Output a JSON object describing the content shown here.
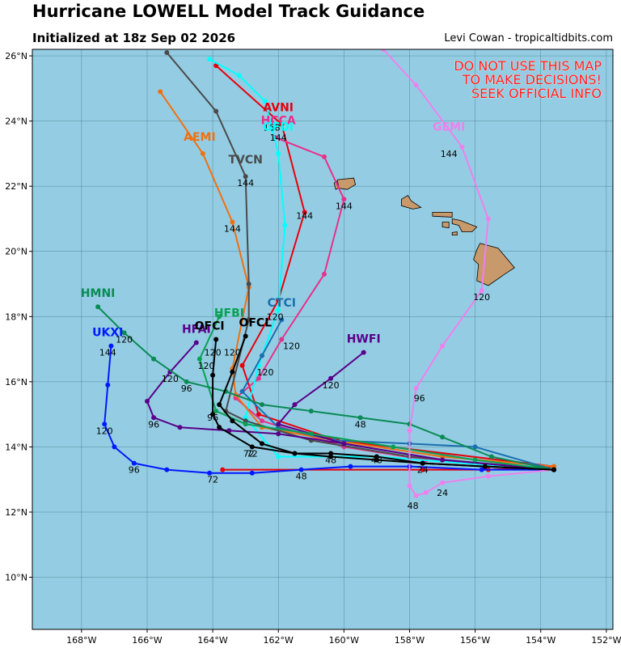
{
  "title": "Hurricane LOWELL Model Track Guidance",
  "subtitle": "Initialized at 18z Sep 02 2026",
  "credit": "Levi Cowan - tropicaltidbits.com",
  "warning_lines": [
    "DO NOT USE THIS MAP",
    "TO MAKE DECISIONS!",
    "SEEK OFFICIAL INFO"
  ],
  "colors": {
    "ocean": "#94cde3",
    "land": "#c8996a",
    "grid": "#2a5a6a",
    "warning": "#ff1a1a"
  },
  "map_bounds": {
    "lon_min": -169.5,
    "lon_max": -151.8,
    "lat_min": 8.4,
    "lat_max": 26.2
  },
  "lon_ticks": [
    {
      "lon": -168,
      "label": "168°W"
    },
    {
      "lon": -166,
      "label": "166°W"
    },
    {
      "lon": -164,
      "label": "164°W"
    },
    {
      "lon": -162,
      "label": "162°W"
    },
    {
      "lon": -160,
      "label": "160°W"
    },
    {
      "lon": -158,
      "label": "158°W"
    },
    {
      "lon": -156,
      "label": "156°W"
    },
    {
      "lon": -154,
      "label": "154°W"
    },
    {
      "lon": -152,
      "label": "152°W"
    }
  ],
  "lat_ticks": [
    {
      "lat": 10,
      "label": "10°N"
    },
    {
      "lat": 12,
      "label": "12°N"
    },
    {
      "lat": 14,
      "label": "14°N"
    },
    {
      "lat": 16,
      "label": "16°N"
    },
    {
      "lat": 18,
      "label": "18°N"
    },
    {
      "lat": 20,
      "label": "20°N"
    },
    {
      "lat": 22,
      "label": "22°N"
    },
    {
      "lat": 24,
      "label": "24°N"
    },
    {
      "lat": 26,
      "label": "26°N"
    }
  ],
  "islands": [
    {
      "name": "Kauai",
      "points": [
        [
          -160.2,
          22.2
        ],
        [
          -159.7,
          22.25
        ],
        [
          -159.65,
          22.05
        ],
        [
          -159.9,
          21.9
        ],
        [
          -160.25,
          21.95
        ]
      ]
    },
    {
      "name": "Niihau",
      "points": [
        [
          -160.3,
          22.1
        ],
        [
          -160.2,
          22.15
        ],
        [
          -160.15,
          21.95
        ],
        [
          -160.25,
          21.9
        ]
      ]
    },
    {
      "name": "Oahu",
      "points": [
        [
          -158.25,
          21.6
        ],
        [
          -158.05,
          21.72
        ],
        [
          -157.95,
          21.55
        ],
        [
          -157.65,
          21.35
        ],
        [
          -157.9,
          21.3
        ],
        [
          -158.25,
          21.4
        ]
      ]
    },
    {
      "name": "Molokai",
      "points": [
        [
          -157.3,
          21.2
        ],
        [
          -156.7,
          21.2
        ],
        [
          -156.7,
          21.05
        ],
        [
          -157.3,
          21.08
        ]
      ]
    },
    {
      "name": "Lanai",
      "points": [
        [
          -157.0,
          20.9
        ],
        [
          -156.8,
          20.9
        ],
        [
          -156.8,
          20.72
        ],
        [
          -157.0,
          20.75
        ]
      ]
    },
    {
      "name": "Maui",
      "points": [
        [
          -156.7,
          21.0
        ],
        [
          -156.45,
          20.95
        ],
        [
          -156.2,
          20.85
        ],
        [
          -155.95,
          20.75
        ],
        [
          -156.1,
          20.6
        ],
        [
          -156.4,
          20.6
        ],
        [
          -156.5,
          20.8
        ],
        [
          -156.7,
          20.85
        ]
      ]
    },
    {
      "name": "Kahoolawe",
      "points": [
        [
          -156.7,
          20.58
        ],
        [
          -156.55,
          20.6
        ],
        [
          -156.55,
          20.5
        ],
        [
          -156.7,
          20.5
        ]
      ]
    },
    {
      "name": "Hawaii",
      "points": [
        [
          -155.85,
          20.25
        ],
        [
          -155.3,
          20.1
        ],
        [
          -154.8,
          19.5
        ],
        [
          -155.1,
          19.3
        ],
        [
          -155.6,
          18.95
        ],
        [
          -155.95,
          19.1
        ],
        [
          -155.9,
          19.6
        ],
        [
          -156.05,
          19.75
        ],
        [
          -155.95,
          20.05
        ]
      ]
    }
  ],
  "tracks": [
    {
      "model": "AVNI",
      "color": "#e8000b",
      "points": [
        [
          -163.7,
          13.3
        ],
        [
          -157.6,
          13.3
        ],
        [
          -155.6,
          13.3
        ],
        [
          -153.6,
          13.4
        ],
        [
          -160.2,
          14.2
        ],
        [
          -162.6,
          15.0
        ],
        [
          -163.1,
          16.5
        ],
        [
          -162.0,
          18.5
        ],
        [
          -161.2,
          21.2
        ],
        [
          -161.9,
          23.9
        ],
        [
          -163.9,
          25.7
        ]
      ],
      "label": {
        "lon": -162.0,
        "lat": 24.3
      },
      "hours": [
        {
          "lon": -162.2,
          "lat": 23.7,
          "t": "168"
        },
        {
          "lon": -161.2,
          "lat": 21.0,
          "t": "144"
        },
        {
          "lon": -162.4,
          "lat": 16.2,
          "t": "120"
        }
      ]
    },
    {
      "model": "HCCA",
      "color": "#e8308a",
      "points": [
        [
          -153.6,
          13.3
        ],
        [
          -157.5,
          13.6
        ],
        [
          -160.0,
          14.0
        ],
        [
          -162.5,
          14.8
        ],
        [
          -163.3,
          15.5
        ],
        [
          -162.6,
          16.1
        ],
        [
          -161.9,
          17.3
        ],
        [
          -160.6,
          19.3
        ],
        [
          -160.0,
          21.6
        ],
        [
          -160.6,
          22.9
        ],
        [
          -162.1,
          23.5
        ]
      ],
      "label": {
        "lon": -162.0,
        "lat": 23.9
      },
      "hours": [
        {
          "lon": -160.0,
          "lat": 21.3,
          "t": "144"
        },
        {
          "lon": -161.6,
          "lat": 17.0,
          "t": "120"
        }
      ]
    },
    {
      "model": "GFDI",
      "color": "#00ffff",
      "points": [
        [
          -153.6,
          13.3
        ],
        [
          -159.0,
          13.7
        ],
        [
          -162.0,
          13.7
        ],
        [
          -163.0,
          14.9
        ],
        [
          -162.6,
          16.5
        ],
        [
          -162.0,
          18.2
        ],
        [
          -161.8,
          20.8
        ],
        [
          -162.0,
          23.0
        ],
        [
          -162.4,
          24.6
        ],
        [
          -163.2,
          25.4
        ],
        [
          -164.1,
          25.9
        ]
      ],
      "label": {
        "lon": -162.0,
        "lat": 23.7
      },
      "hours": [
        {
          "lon": -162.0,
          "lat": 23.4,
          "t": "144"
        }
      ]
    },
    {
      "model": "AEMI",
      "color": "#f07010",
      "points": [
        [
          -153.6,
          13.4
        ],
        [
          -157.0,
          13.7
        ],
        [
          -160.3,
          14.2
        ],
        [
          -162.5,
          14.6
        ],
        [
          -163.3,
          15.6
        ],
        [
          -163.4,
          16.4
        ],
        [
          -162.9,
          18.9
        ],
        [
          -163.4,
          20.9
        ],
        [
          -164.3,
          23.0
        ],
        [
          -165.6,
          24.9
        ]
      ],
      "label": {
        "lon": -164.4,
        "lat": 23.4
      },
      "hours": [
        {
          "lon": -163.4,
          "lat": 20.6,
          "t": "144"
        }
      ]
    },
    {
      "model": "TVCN",
      "color": "#4a4a4a",
      "points": [
        [
          -153.6,
          13.3
        ],
        [
          -158.0,
          13.7
        ],
        [
          -161.0,
          14.2
        ],
        [
          -163.0,
          14.8
        ],
        [
          -163.6,
          15.1
        ],
        [
          -162.9,
          17.9
        ],
        [
          -162.9,
          19.0
        ],
        [
          -163.0,
          22.3
        ],
        [
          -163.9,
          24.3
        ],
        [
          -165.4,
          26.1
        ]
      ],
      "label": {
        "lon": -163.0,
        "lat": 22.7
      },
      "hours": [
        {
          "lon": -163.0,
          "lat": 22.0,
          "t": "144"
        }
      ]
    },
    {
      "model": "CTCI",
      "color": "#1a6fb0",
      "points": [
        [
          -153.6,
          13.3
        ],
        [
          -156.0,
          14.0
        ],
        [
          -158.0,
          14.1
        ],
        [
          -160.3,
          14.2
        ],
        [
          -162.0,
          14.6
        ],
        [
          -163.1,
          15.7
        ],
        [
          -162.5,
          16.8
        ],
        [
          -161.9,
          17.9
        ]
      ],
      "label": {
        "lon": -161.9,
        "lat": 18.3
      },
      "hours": [
        {
          "lon": -162.1,
          "lat": 17.9,
          "t": "120"
        }
      ]
    },
    {
      "model": "HWFI",
      "color": "#5a008a",
      "points": [
        [
          -153.6,
          13.3
        ],
        [
          -157.0,
          13.6
        ],
        [
          -160.0,
          14.1
        ],
        [
          -162.0,
          14.7
        ],
        [
          -161.5,
          15.3
        ],
        [
          -160.4,
          16.1
        ],
        [
          -159.4,
          16.9
        ]
      ],
      "label": {
        "lon": -159.4,
        "lat": 17.2
      },
      "hours": [
        {
          "lon": -160.4,
          "lat": 15.8,
          "t": "120"
        }
      ]
    },
    {
      "model": "HFAI",
      "color": "#5a008a",
      "points": [
        [
          -153.6,
          13.3
        ],
        [
          -157.0,
          13.6
        ],
        [
          -160.0,
          14.1
        ],
        [
          -162.0,
          14.4
        ],
        [
          -163.5,
          14.5
        ],
        [
          -165.0,
          14.6
        ],
        [
          -165.8,
          14.9
        ],
        [
          -166.0,
          15.4
        ],
        [
          -165.3,
          16.3
        ],
        [
          -164.5,
          17.2
        ]
      ],
      "label": {
        "lon": -164.5,
        "lat": 17.5
      },
      "hours": [
        {
          "lon": -165.3,
          "lat": 16.0,
          "t": "120"
        },
        {
          "lon": -165.8,
          "lat": 14.6,
          "t": "96"
        }
      ]
    },
    {
      "model": "HFBI",
      "color": "#0aa055",
      "points": [
        [
          -153.6,
          13.3
        ],
        [
          -156.0,
          13.6
        ],
        [
          -158.5,
          14.0
        ],
        [
          -161.0,
          14.4
        ],
        [
          -163.0,
          14.7
        ],
        [
          -163.9,
          15.1
        ],
        [
          -164.4,
          16.7
        ],
        [
          -163.8,
          18.0
        ]
      ],
      "label": {
        "lon": -163.5,
        "lat": 18.0
      },
      "hours": [
        {
          "lon": -164.2,
          "lat": 16.4,
          "t": "120"
        }
      ]
    },
    {
      "model": "HMNI",
      "color": "#0a8a55",
      "points": [
        [
          -153.6,
          13.3
        ],
        [
          -155.5,
          13.7
        ],
        [
          -157.0,
          14.3
        ],
        [
          -158.0,
          14.7
        ],
        [
          -159.5,
          14.9
        ],
        [
          -161.0,
          15.1
        ],
        [
          -162.5,
          15.3
        ],
        [
          -163.6,
          15.7
        ],
        [
          -164.8,
          16.0
        ],
        [
          -165.8,
          16.7
        ],
        [
          -166.7,
          17.5
        ],
        [
          -167.5,
          18.3
        ]
      ],
      "label": {
        "lon": -167.5,
        "lat": 18.6
      },
      "hours": [
        {
          "lon": -166.7,
          "lat": 17.2,
          "t": "120"
        },
        {
          "lon": -164.8,
          "lat": 15.7,
          "t": "96"
        },
        {
          "lon": -159.5,
          "lat": 14.6,
          "t": "48"
        }
      ]
    },
    {
      "model": "UKXI",
      "color": "#0018ff",
      "points": [
        [
          -153.6,
          13.3
        ],
        [
          -155.8,
          13.3
        ],
        [
          -158.0,
          13.4
        ],
        [
          -159.8,
          13.4
        ],
        [
          -161.3,
          13.3
        ],
        [
          -162.8,
          13.2
        ],
        [
          -164.1,
          13.2
        ],
        [
          -165.4,
          13.3
        ],
        [
          -166.4,
          13.5
        ],
        [
          -167.0,
          14.0
        ],
        [
          -167.3,
          14.7
        ],
        [
          -167.2,
          15.9
        ],
        [
          -167.1,
          17.1
        ]
      ],
      "label": {
        "lon": -167.2,
        "lat": 17.4
      },
      "hours": [
        {
          "lon": -167.2,
          "lat": 16.8,
          "t": "144"
        },
        {
          "lon": -167.3,
          "lat": 14.4,
          "t": "120"
        },
        {
          "lon": -166.4,
          "lat": 13.2,
          "t": "96"
        },
        {
          "lon": -164.0,
          "lat": 12.9,
          "t": "72"
        },
        {
          "lon": -161.3,
          "lat": 13.0,
          "t": "48"
        }
      ]
    },
    {
      "model": "GEMI",
      "color": "#ee80ee",
      "points": [
        [
          -153.6,
          13.3
        ],
        [
          -155.6,
          13.1
        ],
        [
          -157.0,
          12.9
        ],
        [
          -157.5,
          12.6
        ],
        [
          -157.8,
          12.5
        ],
        [
          -158.0,
          12.8
        ],
        [
          -158.0,
          14.5
        ],
        [
          -157.8,
          15.8
        ],
        [
          -157.0,
          17.1
        ],
        [
          -155.8,
          18.8
        ],
        [
          -155.6,
          21.0
        ],
        [
          -156.4,
          23.2
        ],
        [
          -157.8,
          25.1
        ],
        [
          -158.8,
          26.2
        ]
      ],
      "label": {
        "lon": -156.8,
        "lat": 23.7
      },
      "hours": [
        {
          "lon": -156.8,
          "lat": 22.9,
          "t": "144"
        },
        {
          "lon": -155.8,
          "lat": 18.5,
          "t": "120"
        },
        {
          "lon": -157.7,
          "lat": 15.4,
          "t": "96"
        },
        {
          "lon": -157.9,
          "lat": 12.1,
          "t": "48"
        },
        {
          "lon": -157.0,
          "lat": 12.5,
          "t": "24"
        }
      ]
    },
    {
      "model": "OFCI",
      "color": "#000000",
      "points": [
        [
          -153.6,
          13.3
        ],
        [
          -155.7,
          13.4
        ],
        [
          -157.6,
          13.5
        ],
        [
          -159.0,
          13.7
        ],
        [
          -160.4,
          13.8
        ],
        [
          -161.5,
          13.8
        ],
        [
          -162.8,
          14.0
        ],
        [
          -163.8,
          14.6
        ],
        [
          -164.0,
          15.0
        ],
        [
          -164.0,
          16.2
        ],
        [
          -163.9,
          17.3
        ]
      ],
      "label": {
        "lon": -164.1,
        "lat": 17.6
      },
      "hours": [
        {
          "lon": -164.0,
          "lat": 16.8,
          "t": "120"
        },
        {
          "lon": -164.0,
          "lat": 14.8,
          "t": "96"
        },
        {
          "lon": -162.8,
          "lat": 13.7,
          "t": "72"
        },
        {
          "lon": -160.4,
          "lat": 13.5,
          "t": "48"
        },
        {
          "lon": -157.6,
          "lat": 13.2,
          "t": "24"
        }
      ]
    },
    {
      "model": "OFCL",
      "color": "#000000",
      "points": [
        [
          -153.6,
          13.3
        ],
        [
          -155.7,
          13.4
        ],
        [
          -157.6,
          13.5
        ],
        [
          -159.0,
          13.6
        ],
        [
          -160.4,
          13.7
        ],
        [
          -161.5,
          13.8
        ],
        [
          -162.5,
          14.1
        ],
        [
          -163.4,
          14.8
        ],
        [
          -163.8,
          15.3
        ],
        [
          -163.4,
          16.3
        ],
        [
          -163.0,
          17.4
        ]
      ],
      "label": {
        "lon": -162.7,
        "lat": 17.7
      },
      "hours": [
        {
          "lon": -163.4,
          "lat": 16.8,
          "t": "120"
        },
        {
          "lon": -162.9,
          "lat": 13.7,
          "t": "72"
        },
        {
          "lon": -159.0,
          "lat": 13.5,
          "t": "48"
        }
      ]
    }
  ]
}
